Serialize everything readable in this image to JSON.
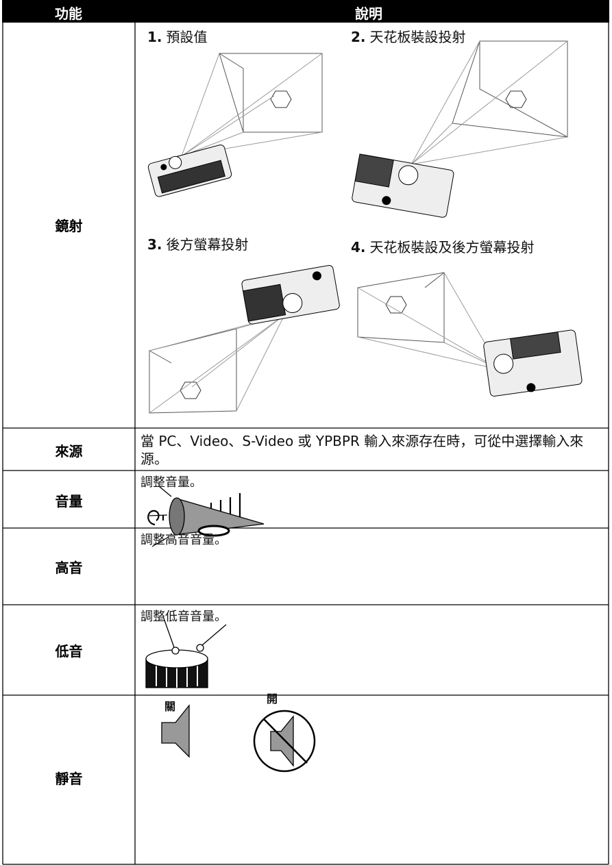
{
  "header": {
    "columns": [
      "功能",
      "說明"
    ]
  },
  "rows": [
    {
      "name": "鏡射",
      "options": [
        {
          "number": "1.",
          "label": "預設值"
        },
        {
          "number": "2.",
          "label": "天花板裝設投射"
        },
        {
          "number": "3.",
          "label": "後方螢幕投射"
        },
        {
          "number": "4.",
          "label": "天花板裝設及後方螢幕投射"
        }
      ]
    },
    {
      "name": "來源",
      "description": "當 PC、Video、S-Video 或 YPBPR 輸入來源存在時，可從中選擇輸入來源。"
    },
    {
      "name": "音量",
      "description": "調整音量。"
    },
    {
      "name": "高音",
      "description": "調整高音音量。"
    },
    {
      "name": "低音",
      "description": "調整低音音量。"
    },
    {
      "name": "靜音",
      "states": [
        "關",
        "開"
      ]
    }
  ]
}
